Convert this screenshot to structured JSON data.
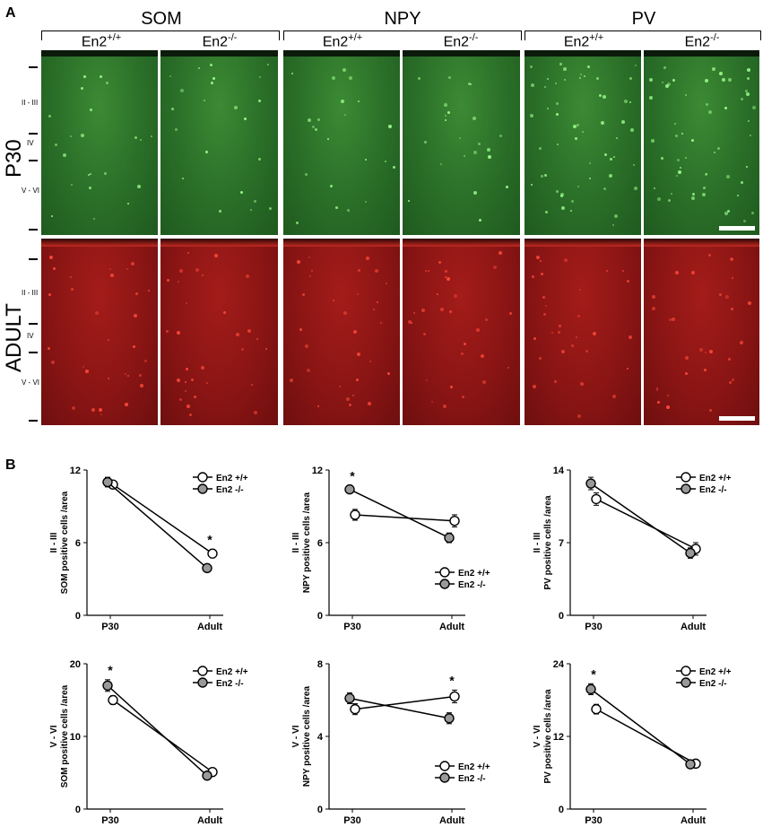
{
  "panel_a": {
    "letter": "A",
    "groups": [
      {
        "title": "SOM",
        "genotypes": [
          {
            "base": "En2",
            "sup": "+/+"
          },
          {
            "base": "En2",
            "sup": "-/-"
          }
        ]
      },
      {
        "title": "NPY",
        "genotypes": [
          {
            "base": "En2",
            "sup": "+/+"
          },
          {
            "base": "En2",
            "sup": "-/-"
          }
        ]
      },
      {
        "title": "PV",
        "genotypes": [
          {
            "base": "En2",
            "sup": "+/+"
          },
          {
            "base": "En2",
            "sup": "-/-"
          }
        ]
      }
    ],
    "rows": [
      {
        "label": "P30",
        "color": "#2e7a2c",
        "layers": [
          "II - III",
          "IV",
          "V - VI"
        ]
      },
      {
        "label": "ADULT",
        "color": "#8f1716",
        "layers": [
          "II - III",
          "IV",
          "V - VI"
        ]
      }
    ]
  },
  "panel_b": {
    "letter": "B"
  },
  "chart_data": [
    {
      "type": "line",
      "y_layer": "II - III",
      "ylabel": "SOM positive cells /area",
      "categories": [
        "P30",
        "Adult"
      ],
      "ylim": [
        0,
        12
      ],
      "yticks": [
        0,
        6,
        12
      ],
      "legend": "top-right",
      "series": [
        {
          "name": "En2 +/+",
          "values": [
            10.8,
            5.1
          ],
          "errors": [
            0.3,
            0.35
          ],
          "fill": "#ffffff"
        },
        {
          "name": "En2 -/-",
          "values": [
            11.0,
            3.9
          ],
          "errors": [
            0.4,
            0.25
          ],
          "fill": "#999999"
        }
      ],
      "annotations": [
        {
          "category": "Adult",
          "text": "*"
        }
      ]
    },
    {
      "type": "line",
      "y_layer": "II - III",
      "ylabel": "NPY positive cells /area",
      "categories": [
        "P30",
        "Adult"
      ],
      "ylim": [
        0,
        12
      ],
      "yticks": [
        0,
        6,
        12
      ],
      "legend": "bottom-right",
      "series": [
        {
          "name": "En2 +/+",
          "values": [
            8.3,
            7.8
          ],
          "errors": [
            0.45,
            0.5
          ],
          "fill": "#ffffff"
        },
        {
          "name": "En2 -/-",
          "values": [
            10.4,
            6.4
          ],
          "errors": [
            0.3,
            0.4
          ],
          "fill": "#999999"
        }
      ],
      "annotations": [
        {
          "category": "P30",
          "text": "*"
        }
      ]
    },
    {
      "type": "line",
      "y_layer": "II - III",
      "ylabel": "PV positive cells /area",
      "categories": [
        "P30",
        "Adult"
      ],
      "ylim": [
        0,
        14
      ],
      "yticks": [
        0,
        7,
        14
      ],
      "legend": "top-right",
      "series": [
        {
          "name": "En2 +/+",
          "values": [
            11.2,
            6.4
          ],
          "errors": [
            0.6,
            0.6
          ],
          "fill": "#ffffff"
        },
        {
          "name": "En2 -/-",
          "values": [
            12.7,
            6.0
          ],
          "errors": [
            0.6,
            0.5
          ],
          "fill": "#999999"
        }
      ],
      "annotations": []
    },
    {
      "type": "line",
      "y_layer": "V - VI",
      "ylabel": "SOM positive cells /area",
      "categories": [
        "P30",
        "Adult"
      ],
      "ylim": [
        0,
        20
      ],
      "yticks": [
        0,
        10,
        20
      ],
      "legend": "top-right",
      "series": [
        {
          "name": "En2 +/+",
          "values": [
            15.0,
            5.1
          ],
          "errors": [
            0.6,
            0.3
          ],
          "fill": "#ffffff"
        },
        {
          "name": "En2 -/-",
          "values": [
            17.0,
            4.6
          ],
          "errors": [
            0.8,
            0.3
          ],
          "fill": "#999999"
        }
      ],
      "annotations": [
        {
          "category": "P30",
          "text": "*"
        }
      ]
    },
    {
      "type": "line",
      "y_layer": "V - VI",
      "ylabel": "NPY positive cells /area",
      "categories": [
        "P30",
        "Adult"
      ],
      "ylim": [
        0,
        8
      ],
      "yticks": [
        0,
        4,
        8
      ],
      "legend": "bottom-right",
      "series": [
        {
          "name": "En2 +/+",
          "values": [
            5.5,
            6.2
          ],
          "errors": [
            0.3,
            0.35
          ],
          "fill": "#ffffff"
        },
        {
          "name": "En2 -/-",
          "values": [
            6.1,
            5.0
          ],
          "errors": [
            0.3,
            0.3
          ],
          "fill": "#999999"
        }
      ],
      "annotations": [
        {
          "category": "Adult",
          "text": "*"
        }
      ]
    },
    {
      "type": "line",
      "y_layer": "V - VI",
      "ylabel": "PV positive cells /area",
      "categories": [
        "P30",
        "Adult"
      ],
      "ylim": [
        0,
        24
      ],
      "yticks": [
        0,
        12,
        24
      ],
      "legend": "top-right",
      "series": [
        {
          "name": "En2 +/+",
          "values": [
            16.5,
            7.5
          ],
          "errors": [
            0.8,
            0.3
          ],
          "fill": "#ffffff"
        },
        {
          "name": "En2 -/-",
          "values": [
            19.8,
            7.4
          ],
          "errors": [
            0.9,
            0.3
          ],
          "fill": "#999999"
        }
      ],
      "annotations": [
        {
          "category": "P30",
          "text": "*"
        }
      ]
    }
  ]
}
